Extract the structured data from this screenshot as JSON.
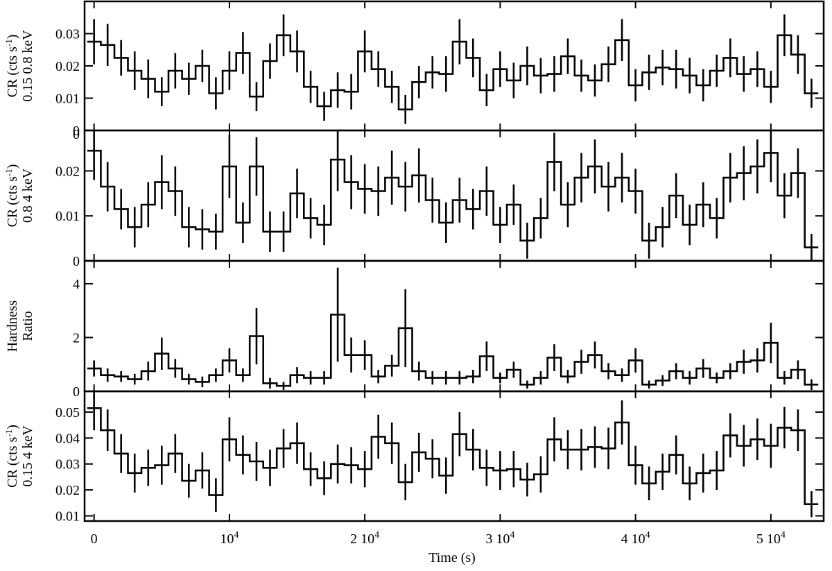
{
  "chart_data": {
    "type": "line",
    "style": "step-histogram-with-error-bars",
    "xlabel": "Time (s)",
    "x_ticks": [
      {
        "value": 0,
        "label": "0"
      },
      {
        "value": 10000,
        "label": "10",
        "exp": "4"
      },
      {
        "value": 20000,
        "label": "2 10",
        "exp": "4"
      },
      {
        "value": 30000,
        "label": "3 10",
        "exp": "4"
      },
      {
        "value": 40000,
        "label": "4 10",
        "exp": "4"
      },
      {
        "value": 50000,
        "label": "5 10",
        "exp": "4"
      }
    ],
    "xlim": [
      -700,
      53900
    ],
    "bin_width": 1000,
    "x": [
      0,
      1000,
      2000,
      3000,
      4000,
      5000,
      6000,
      7000,
      8000,
      9000,
      10000,
      11000,
      12000,
      13000,
      14000,
      15000,
      16000,
      17000,
      18000,
      19000,
      20000,
      21000,
      22000,
      23000,
      24000,
      25000,
      26000,
      27000,
      28000,
      29000,
      30000,
      31000,
      32000,
      33000,
      34000,
      35000,
      36000,
      37000,
      38000,
      39000,
      40000,
      41000,
      42000,
      43000,
      44000,
      45000,
      46000,
      47000,
      48000,
      49000,
      50000,
      51000,
      52000,
      53000
    ],
    "panels": [
      {
        "ylabel_line1": "CR (cts s",
        "ylabel_sup": "-1",
        "ylabel_line1_end": ")",
        "ylabel_line2": "0.15 0.8 keV",
        "ylim": [
          0,
          0.04
        ],
        "y_ticks": [
          {
            "value": 0,
            "label": "0"
          },
          {
            "value": 0.01,
            "label": "0.01"
          },
          {
            "value": 0.02,
            "label": "0.02"
          },
          {
            "value": 0.03,
            "label": "0.03"
          }
        ],
        "values": [
          0.0275,
          0.0265,
          0.0225,
          0.0185,
          0.016,
          0.012,
          0.0185,
          0.016,
          0.02,
          0.0115,
          0.0185,
          0.024,
          0.0105,
          0.0215,
          0.0295,
          0.0245,
          0.0135,
          0.0075,
          0.0125,
          0.012,
          0.0245,
          0.019,
          0.0135,
          0.0065,
          0.015,
          0.018,
          0.0175,
          0.0275,
          0.0225,
          0.0125,
          0.019,
          0.0155,
          0.02,
          0.017,
          0.0175,
          0.023,
          0.017,
          0.0155,
          0.0205,
          0.028,
          0.014,
          0.018,
          0.0195,
          0.019,
          0.017,
          0.014,
          0.0185,
          0.0225,
          0.0175,
          0.019,
          0.0135,
          0.0295,
          0.0235,
          0.0115
        ],
        "errors": [
          0.007,
          0.0065,
          0.0055,
          0.006,
          0.006,
          0.0045,
          0.0055,
          0.005,
          0.005,
          0.005,
          0.006,
          0.0065,
          0.0045,
          0.0055,
          0.0065,
          0.0065,
          0.005,
          0.0045,
          0.0055,
          0.0055,
          0.0065,
          0.0055,
          0.005,
          0.0045,
          0.005,
          0.005,
          0.0055,
          0.007,
          0.006,
          0.005,
          0.0055,
          0.0055,
          0.006,
          0.0055,
          0.0055,
          0.0055,
          0.005,
          0.005,
          0.0055,
          0.0065,
          0.005,
          0.0055,
          0.0055,
          0.006,
          0.0055,
          0.005,
          0.005,
          0.006,
          0.0055,
          0.0055,
          0.005,
          0.0065,
          0.006,
          0.0045
        ]
      },
      {
        "ylabel_line1": "CR (cts s",
        "ylabel_sup": "-1",
        "ylabel_line1_end": ")",
        "ylabel_line2": "0.8 4 keV",
        "ylim": [
          0,
          0.029
        ],
        "y_ticks": [
          {
            "value": 0,
            "label": "0"
          },
          {
            "value": 0.01,
            "label": "0.01"
          },
          {
            "value": 0.02,
            "label": "0.02"
          }
        ],
        "top_label": {
          "value": 0.029,
          "label": "0"
        },
        "values": [
          0.0245,
          0.0165,
          0.0115,
          0.0075,
          0.0125,
          0.0175,
          0.0155,
          0.0075,
          0.007,
          0.0065,
          0.021,
          0.0085,
          0.021,
          0.0065,
          0.0065,
          0.015,
          0.0095,
          0.008,
          0.0225,
          0.0175,
          0.016,
          0.0155,
          0.0185,
          0.0165,
          0.019,
          0.0135,
          0.0085,
          0.0135,
          0.0115,
          0.0155,
          0.008,
          0.0125,
          0.0045,
          0.0095,
          0.022,
          0.0125,
          0.0185,
          0.021,
          0.0165,
          0.0185,
          0.0155,
          0.0045,
          0.0075,
          0.0145,
          0.008,
          0.0125,
          0.0095,
          0.0185,
          0.0195,
          0.021,
          0.024,
          0.0145,
          0.0195,
          0.003
        ],
        "errors": [
          0.0065,
          0.0055,
          0.0045,
          0.0045,
          0.005,
          0.006,
          0.0055,
          0.0045,
          0.0045,
          0.004,
          0.007,
          0.0045,
          0.0065,
          0.0045,
          0.0045,
          0.0055,
          0.0045,
          0.0045,
          0.007,
          0.006,
          0.0055,
          0.0055,
          0.006,
          0.0055,
          0.006,
          0.005,
          0.0045,
          0.005,
          0.0045,
          0.0055,
          0.004,
          0.0045,
          0.004,
          0.0045,
          0.0065,
          0.005,
          0.0055,
          0.006,
          0.0055,
          0.0055,
          0.005,
          0.004,
          0.0045,
          0.005,
          0.0045,
          0.005,
          0.0045,
          0.0055,
          0.006,
          0.006,
          0.0065,
          0.005,
          0.0055,
          0.003
        ]
      },
      {
        "ylabel_line1": "Hardness",
        "ylabel_line2": "Ratio",
        "ylim": [
          0,
          4.85
        ],
        "y_ticks": [
          {
            "value": 0,
            "label": "0"
          },
          {
            "value": 2,
            "label": "2"
          },
          {
            "value": 4,
            "label": "4"
          }
        ],
        "values": [
          0.85,
          0.6,
          0.55,
          0.45,
          0.75,
          1.4,
          0.85,
          0.45,
          0.35,
          0.6,
          1.15,
          0.6,
          2.05,
          0.3,
          0.2,
          0.6,
          0.5,
          0.5,
          2.85,
          1.35,
          1.35,
          0.55,
          0.95,
          2.35,
          0.75,
          0.5,
          0.5,
          0.5,
          0.55,
          1.3,
          0.5,
          0.8,
          0.25,
          0.5,
          1.25,
          0.55,
          1.1,
          1.35,
          0.75,
          0.6,
          1.15,
          0.25,
          0.4,
          0.75,
          0.5,
          0.85,
          0.5,
          0.75,
          1.1,
          1.15,
          1.8,
          0.5,
          0.8,
          0.25
        ],
        "errors": [
          0.3,
          0.25,
          0.2,
          0.2,
          0.35,
          0.6,
          0.35,
          0.2,
          0.2,
          0.25,
          0.45,
          0.25,
          1.05,
          0.2,
          0.15,
          0.3,
          0.25,
          0.25,
          1.75,
          0.65,
          0.55,
          0.25,
          0.4,
          1.45,
          0.35,
          0.25,
          0.25,
          0.25,
          0.25,
          0.55,
          0.2,
          0.3,
          0.15,
          0.25,
          0.5,
          0.25,
          0.45,
          0.5,
          0.3,
          0.25,
          0.45,
          0.15,
          0.2,
          0.3,
          0.25,
          0.35,
          0.2,
          0.3,
          0.45,
          0.45,
          0.75,
          0.25,
          0.35,
          0.2
        ]
      },
      {
        "ylabel_line1": "CR (cts s",
        "ylabel_sup": "-1",
        "ylabel_line1_end": ")",
        "ylabel_line2": "0.15 4 keV",
        "ylim": [
          0.008,
          0.058
        ],
        "y_ticks": [
          {
            "value": 0.01,
            "label": "0.01"
          },
          {
            "value": 0.02,
            "label": "0.02"
          },
          {
            "value": 0.03,
            "label": "0.03"
          },
          {
            "value": 0.04,
            "label": "0.04"
          },
          {
            "value": 0.05,
            "label": "0.05"
          }
        ],
        "values": [
          0.0515,
          0.043,
          0.034,
          0.0265,
          0.0285,
          0.0295,
          0.034,
          0.0235,
          0.0275,
          0.018,
          0.0395,
          0.0335,
          0.031,
          0.0285,
          0.036,
          0.038,
          0.028,
          0.0245,
          0.03,
          0.0295,
          0.028,
          0.0405,
          0.038,
          0.023,
          0.0345,
          0.032,
          0.0255,
          0.0415,
          0.0355,
          0.0285,
          0.0275,
          0.028,
          0.024,
          0.026,
          0.0395,
          0.0355,
          0.0355,
          0.0365,
          0.036,
          0.046,
          0.0295,
          0.0225,
          0.027,
          0.0335,
          0.0225,
          0.0265,
          0.0275,
          0.041,
          0.037,
          0.0395,
          0.037,
          0.044,
          0.043,
          0.0145
        ],
        "errors": [
          0.0085,
          0.008,
          0.0075,
          0.0075,
          0.007,
          0.0075,
          0.0075,
          0.0065,
          0.007,
          0.0065,
          0.0085,
          0.0075,
          0.0075,
          0.007,
          0.0075,
          0.008,
          0.0065,
          0.0065,
          0.0075,
          0.007,
          0.007,
          0.0085,
          0.008,
          0.007,
          0.0075,
          0.0075,
          0.007,
          0.0085,
          0.008,
          0.007,
          0.0075,
          0.007,
          0.0065,
          0.007,
          0.0085,
          0.0075,
          0.008,
          0.008,
          0.008,
          0.0085,
          0.0075,
          0.0065,
          0.007,
          0.0075,
          0.0065,
          0.0075,
          0.0075,
          0.0085,
          0.008,
          0.008,
          0.0085,
          0.008,
          0.008,
          0.005
        ]
      }
    ]
  }
}
